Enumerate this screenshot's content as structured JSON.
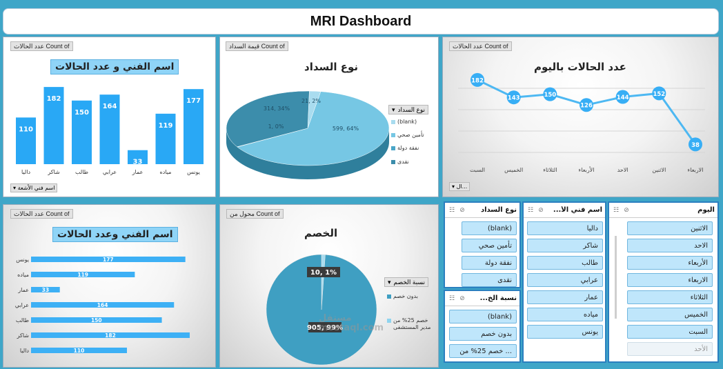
{
  "dashboard_title": "MRI Dashboard",
  "colors": {
    "accent_blue": "#29a8f5",
    "pie_dark": "#3c8dab",
    "pie_light": "#76c7e4",
    "slicer_button": "#bfe6fb",
    "background": "#3fa6c8"
  },
  "panel1": {
    "field_tags": [
      "عدد الحالات Count of"
    ],
    "title": "اسم الفني و عدد الحالات",
    "axis_filter": "اسم فني الأشعة"
  },
  "panel2": {
    "field_tags": [
      "قيمة السداد Count of"
    ],
    "title": "نوع السداد",
    "legend_title": "نوع السداد",
    "legend": [
      "(blank)",
      "تأمين صحي",
      "نفقة دولة",
      "نقدى"
    ],
    "slice_labels": [
      "21, 2%",
      "599, 64%",
      "1, 0%",
      "314, 34%"
    ]
  },
  "panel3": {
    "field_tags": [
      "عدد الحالات Count of"
    ],
    "title": "عدد الحالات باليوم",
    "axis_filter": "ال..."
  },
  "panel4": {
    "field_tags": [
      "عدد الحالات Count of"
    ],
    "title": "اسم الفني وعدد الحالات"
  },
  "panel5": {
    "field_tags": [
      "محول من Count of"
    ],
    "title": "الخصم",
    "legend_title": "نسبة الخصم",
    "legend": [
      "بدون خصم",
      "خصم 25% من مدير المستشفى"
    ],
    "slice_labels": [
      "10, 1%",
      "905, 99%"
    ]
  },
  "slicers": {
    "payment": {
      "title": "نوع السداد",
      "items": [
        "(blank)",
        "تأمين صحي",
        "نفقة دولة",
        "نقدى"
      ]
    },
    "discount": {
      "title": "نسبة الخ...",
      "items": [
        "(blank)",
        "بدون خصم",
        "خصم 25% من ..."
      ]
    },
    "technician": {
      "title": "اسم فني الأ...",
      "items": [
        "داليا",
        "شاكر",
        "طالب",
        "عرابي",
        "عمار",
        "مياده",
        "يونس"
      ]
    },
    "day": {
      "title": "اليوم",
      "items": [
        "الاثنين",
        "الاحد",
        "الأربعاء",
        "الاربعاء",
        "الثلاثاء",
        "الخميس",
        "السبت",
        "الأحد"
      ]
    }
  },
  "watermark": "مستقل mostaql.com",
  "chart_data": [
    {
      "type": "bar",
      "title": "اسم الفني و عدد الحالات",
      "categories": [
        "داليا",
        "شاكر",
        "طالب",
        "عرابي",
        "عمار",
        "مياده",
        "يونس"
      ],
      "values": [
        110,
        182,
        150,
        164,
        33,
        119,
        177
      ],
      "ylim": [
        0,
        200
      ]
    },
    {
      "type": "pie",
      "title": "نوع السداد",
      "categories": [
        "(blank)",
        "تأمين صحي",
        "نفقة دولة",
        "نقدى"
      ],
      "values": [
        21,
        599,
        1,
        314
      ]
    },
    {
      "type": "line",
      "title": "عدد الحالات باليوم",
      "categories": [
        "السبت",
        "الخميس",
        "الثلاثاء",
        "الأربعاء",
        "الاحد",
        "الاثنين",
        "الاربعاء"
      ],
      "values": [
        182,
        143,
        150,
        126,
        144,
        152,
        38
      ],
      "grid": true
    },
    {
      "type": "bar",
      "orientation": "horizontal",
      "title": "اسم الفني وعدد الحالات",
      "categories": [
        "يونس",
        "مياده",
        "عمار",
        "عرابي",
        "طالب",
        "شاكر",
        "داليا"
      ],
      "values": [
        177,
        119,
        33,
        164,
        150,
        182,
        110
      ]
    },
    {
      "type": "pie",
      "title": "الخصم",
      "categories": [
        "خصم 25% من مدير المستشفى",
        "بدون خصم"
      ],
      "values": [
        10,
        905
      ]
    }
  ]
}
